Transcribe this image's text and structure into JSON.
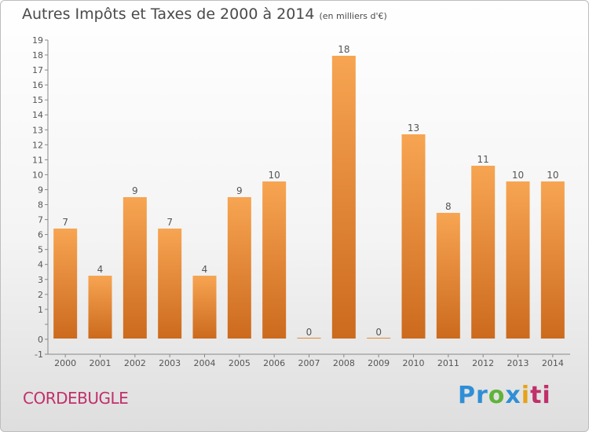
{
  "title": "Autres Impôts et Taxes de 2000 à 2014",
  "unit": "(en milliers d'€)",
  "commune": "CORDEBUGLE",
  "logo": {
    "p1": "Pr",
    "p2": "o",
    "p3": "x",
    "p4": "i",
    "p5": "ti"
  },
  "colors": {
    "bar_top": "#f7a552",
    "bar_bottom": "#cc6a1d",
    "axis": "#888888"
  },
  "chart_data": {
    "type": "bar",
    "categories": [
      "2000",
      "2001",
      "2002",
      "2003",
      "2004",
      "2005",
      "2006",
      "2007",
      "2008",
      "2009",
      "2010",
      "2011",
      "2012",
      "2013",
      "2014"
    ],
    "values": [
      7,
      4,
      9,
      7,
      4,
      9,
      10,
      0,
      18,
      0,
      13,
      8,
      11,
      10,
      10
    ],
    "ylim": [
      -1,
      19
    ],
    "yticks": [
      "-1",
      "0",
      "",
      "1",
      "2",
      "3",
      "4",
      "5",
      "6",
      "7",
      "8",
      "9",
      "10",
      "11",
      "12",
      "13",
      "14",
      "15",
      "16",
      "17",
      "18",
      "19"
    ],
    "grid": false,
    "title": "Autres Impôts et Taxes de 2000 à 2014",
    "xlabel": "",
    "ylabel": ""
  }
}
